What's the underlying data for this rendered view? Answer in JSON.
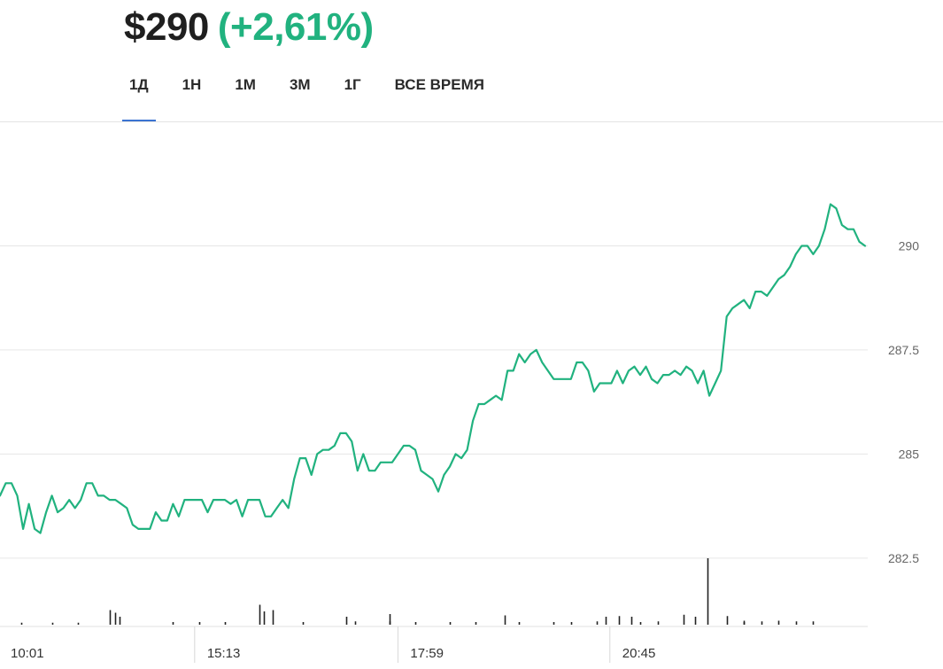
{
  "header": {
    "price": "$290",
    "change": "(+2,61%)"
  },
  "tabs": [
    {
      "label": "1Д",
      "active": true
    },
    {
      "label": "1Н",
      "active": false
    },
    {
      "label": "1М",
      "active": false
    },
    {
      "label": "3М",
      "active": false
    },
    {
      "label": "1Г",
      "active": false
    },
    {
      "label": "ВСЕ ВРЕМЯ",
      "active": false
    }
  ],
  "colors": {
    "line": "#21b27f",
    "accent": "#3b73d1",
    "volume": "#222222",
    "grid": "#e6e6e6"
  },
  "chart_data": {
    "type": "line",
    "ylim": [
      280.9,
      292.5
    ],
    "y_ticks": [
      282.5,
      285,
      287.5,
      290
    ],
    "y_tick_labels": [
      "282.5",
      "285",
      "287.5",
      "290"
    ],
    "x_ticks": [
      0,
      0.225,
      0.46,
      0.705
    ],
    "x_tick_labels": [
      "10:01",
      "15:13",
      "17:59",
      "20:45"
    ],
    "grid": true,
    "series": [
      {
        "values": [
          284.0,
          284.3,
          284.3,
          284.0,
          283.2,
          283.8,
          283.2,
          283.1,
          283.6,
          284.0,
          283.6,
          283.7,
          283.9,
          283.7,
          283.9,
          284.3,
          284.3,
          284.0,
          284.0,
          283.9,
          283.9,
          283.8,
          283.7,
          283.3,
          283.2,
          283.2,
          283.2,
          283.6,
          283.4,
          283.4,
          283.8,
          283.5,
          283.9,
          283.9,
          283.9,
          283.9,
          283.6,
          283.9,
          283.9,
          283.9,
          283.8,
          283.9,
          283.5,
          283.9,
          283.9,
          283.9,
          283.5,
          283.5,
          283.7,
          283.9,
          283.7,
          284.4,
          284.9,
          284.9,
          284.5,
          285.0,
          285.1,
          285.1,
          285.2,
          285.5,
          285.5,
          285.3,
          284.6,
          285.0,
          284.6,
          284.6,
          284.8,
          284.8,
          284.8,
          285.0,
          285.2,
          285.2,
          285.1,
          284.6,
          284.5,
          284.4,
          284.1,
          284.5,
          284.7,
          285.0,
          284.9,
          285.1,
          285.8,
          286.2,
          286.2,
          286.3,
          286.4,
          286.3,
          287.0,
          287.0,
          287.4,
          287.2,
          287.4,
          287.5,
          287.2,
          287.0,
          286.8,
          286.8,
          286.8,
          286.8,
          287.2,
          287.2,
          287.0,
          286.5,
          286.7,
          286.7,
          286.7,
          287.0,
          286.7,
          287.0,
          287.1,
          286.9,
          287.1,
          286.8,
          286.7,
          286.9,
          286.9,
          287.0,
          286.9,
          287.1,
          287.0,
          286.7,
          287.0,
          286.4,
          286.7,
          287.0,
          288.3,
          288.5,
          288.6,
          288.7,
          288.5,
          288.9,
          288.9,
          288.8,
          289.0,
          289.2,
          289.3,
          289.5,
          289.8,
          290.0,
          290.0,
          289.8,
          290.0,
          290.4,
          291.0,
          290.9,
          290.5,
          290.4,
          290.4,
          290.1,
          290.0
        ]
      }
    ],
    "volume": {
      "ymax": 1,
      "bars": [
        [
          0.127,
          0.22
        ],
        [
          0.133,
          0.18
        ],
        [
          0.138,
          0.12
        ],
        [
          0.3,
          0.3
        ],
        [
          0.305,
          0.2
        ],
        [
          0.315,
          0.22
        ],
        [
          0.4,
          0.12
        ],
        [
          0.45,
          0.16
        ],
        [
          0.583,
          0.14
        ],
        [
          0.7,
          0.12
        ],
        [
          0.715,
          0.13
        ],
        [
          0.73,
          0.12
        ],
        [
          0.79,
          0.15
        ],
        [
          0.803,
          0.12
        ],
        [
          0.818,
          1.0
        ],
        [
          0.84,
          0.13
        ],
        [
          0.9,
          0.06
        ],
        [
          0.94,
          0.05
        ],
        [
          0.45,
          0.05
        ],
        [
          0.41,
          0.05
        ],
        [
          0.55,
          0.04
        ],
        [
          0.64,
          0.04
        ],
        [
          0.69,
          0.05
        ],
        [
          0.76,
          0.05
        ],
        [
          0.86,
          0.06
        ],
        [
          0.88,
          0.05
        ],
        [
          0.92,
          0.05
        ],
        [
          0.025,
          0.03
        ],
        [
          0.06,
          0.03
        ],
        [
          0.09,
          0.03
        ],
        [
          0.2,
          0.04
        ],
        [
          0.23,
          0.04
        ],
        [
          0.26,
          0.04
        ],
        [
          0.35,
          0.04
        ],
        [
          0.48,
          0.04
        ],
        [
          0.52,
          0.04
        ],
        [
          0.6,
          0.04
        ],
        [
          0.66,
          0.04
        ],
        [
          0.74,
          0.04
        ],
        [
          0.86,
          0.04
        ]
      ]
    }
  }
}
